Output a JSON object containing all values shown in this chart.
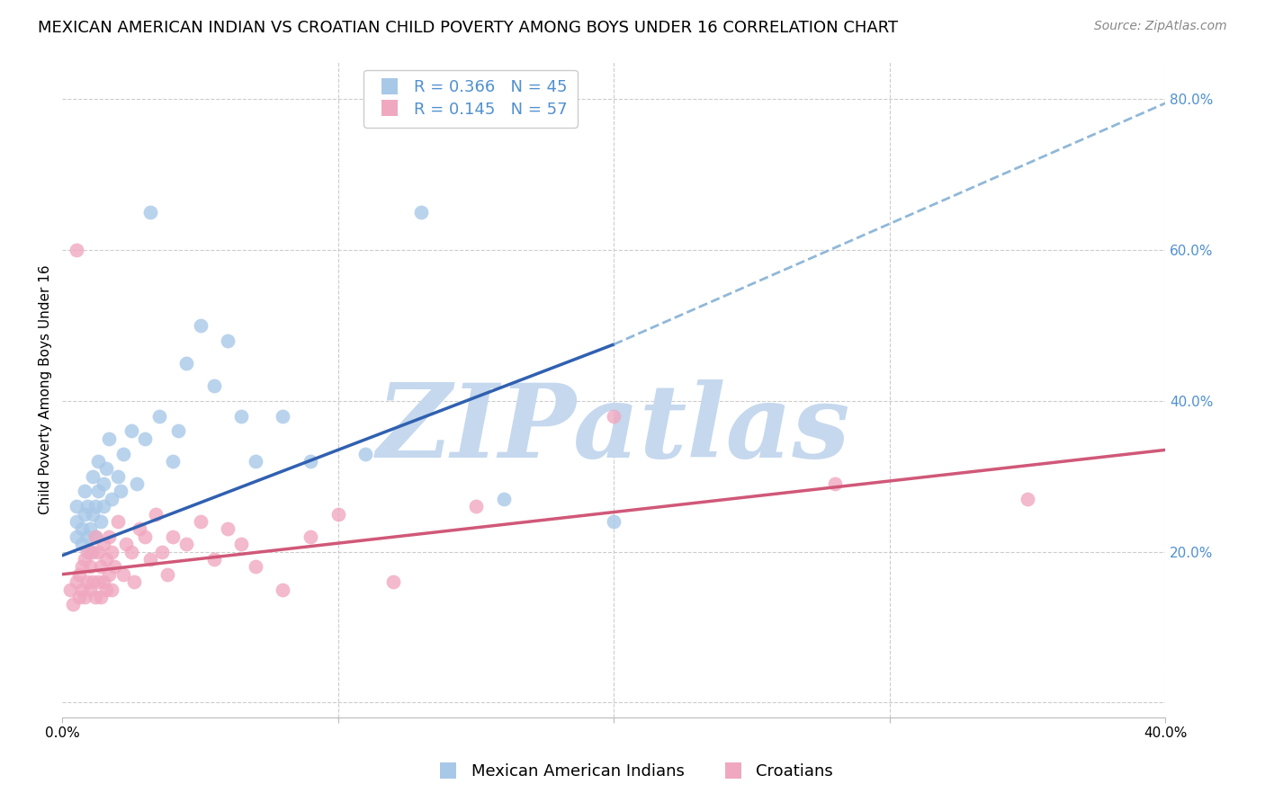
{
  "title": "MEXICAN AMERICAN INDIAN VS CROATIAN CHILD POVERTY AMONG BOYS UNDER 16 CORRELATION CHART",
  "source": "Source: ZipAtlas.com",
  "ylabel": "Child Poverty Among Boys Under 16",
  "xlim": [
    0.0,
    0.4
  ],
  "ylim": [
    -0.02,
    0.85
  ],
  "yticks_right": [
    0.2,
    0.4,
    0.6,
    0.8
  ],
  "ytick_right_labels": [
    "20.0%",
    "40.0%",
    "60.0%",
    "80.0%"
  ],
  "grid_color": "#cccccc",
  "background_color": "#ffffff",
  "watermark": "ZIPatlas",
  "watermark_color": "#c5d8ee",
  "series1_name": "Mexican American Indians",
  "series1_color": "#a8c8e8",
  "series1_R": 0.366,
  "series1_N": 45,
  "series1_x": [
    0.005,
    0.005,
    0.005,
    0.007,
    0.007,
    0.008,
    0.008,
    0.009,
    0.009,
    0.01,
    0.01,
    0.011,
    0.011,
    0.012,
    0.012,
    0.013,
    0.013,
    0.014,
    0.015,
    0.015,
    0.016,
    0.017,
    0.018,
    0.02,
    0.021,
    0.022,
    0.025,
    0.027,
    0.03,
    0.032,
    0.035,
    0.04,
    0.042,
    0.045,
    0.05,
    0.055,
    0.06,
    0.065,
    0.07,
    0.08,
    0.09,
    0.11,
    0.13,
    0.16,
    0.2
  ],
  "series1_y": [
    0.22,
    0.24,
    0.26,
    0.21,
    0.23,
    0.25,
    0.28,
    0.22,
    0.26,
    0.2,
    0.23,
    0.25,
    0.3,
    0.22,
    0.26,
    0.28,
    0.32,
    0.24,
    0.26,
    0.29,
    0.31,
    0.35,
    0.27,
    0.3,
    0.28,
    0.33,
    0.36,
    0.29,
    0.35,
    0.65,
    0.38,
    0.32,
    0.36,
    0.45,
    0.5,
    0.42,
    0.48,
    0.38,
    0.32,
    0.38,
    0.32,
    0.33,
    0.65,
    0.27,
    0.24
  ],
  "series2_name": "Croatians",
  "series2_color": "#f0a8c0",
  "series2_R": 0.145,
  "series2_N": 57,
  "series2_x": [
    0.003,
    0.004,
    0.005,
    0.005,
    0.006,
    0.006,
    0.007,
    0.007,
    0.008,
    0.008,
    0.009,
    0.009,
    0.01,
    0.01,
    0.011,
    0.011,
    0.012,
    0.012,
    0.013,
    0.013,
    0.014,
    0.014,
    0.015,
    0.015,
    0.016,
    0.016,
    0.017,
    0.017,
    0.018,
    0.018,
    0.019,
    0.02,
    0.022,
    0.023,
    0.025,
    0.026,
    0.028,
    0.03,
    0.032,
    0.034,
    0.036,
    0.038,
    0.04,
    0.045,
    0.05,
    0.055,
    0.06,
    0.065,
    0.07,
    0.08,
    0.09,
    0.1,
    0.12,
    0.15,
    0.2,
    0.28,
    0.35
  ],
  "series2_y": [
    0.15,
    0.13,
    0.16,
    0.6,
    0.14,
    0.17,
    0.15,
    0.18,
    0.14,
    0.19,
    0.16,
    0.2,
    0.15,
    0.18,
    0.16,
    0.2,
    0.14,
    0.22,
    0.16,
    0.2,
    0.14,
    0.18,
    0.16,
    0.21,
    0.15,
    0.19,
    0.17,
    0.22,
    0.15,
    0.2,
    0.18,
    0.24,
    0.17,
    0.21,
    0.2,
    0.16,
    0.23,
    0.22,
    0.19,
    0.25,
    0.2,
    0.17,
    0.22,
    0.21,
    0.24,
    0.19,
    0.23,
    0.21,
    0.18,
    0.15,
    0.22,
    0.25,
    0.16,
    0.26,
    0.38,
    0.29,
    0.27
  ],
  "line1_color": "#3060b0",
  "line1_dash_color": "#90b8d8",
  "line2_color": "#d05878",
  "title_fontsize": 13,
  "axis_label_fontsize": 11,
  "tick_fontsize": 11,
  "legend_fontsize": 13,
  "right_tick_color": "#5090d0",
  "blue_line_x_start": 0.0,
  "blue_line_x_solid_end": 0.2,
  "blue_line_x_dash_end": 0.4,
  "blue_line_y_at_0": 0.195,
  "blue_line_y_at_020": 0.475,
  "blue_line_y_at_040": 0.795,
  "pink_line_x_start": 0.0,
  "pink_line_x_end": 0.4,
  "pink_line_y_at_0": 0.17,
  "pink_line_y_at_040": 0.335
}
